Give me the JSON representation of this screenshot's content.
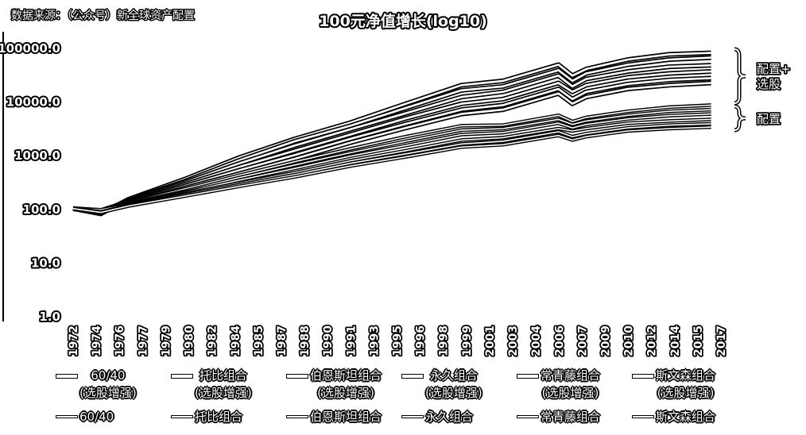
{
  "source_note": "数据来源：（公众号）新全球资产配置",
  "chart_data": {
    "type": "line",
    "title": "100元净值增长(log10)",
    "xlabel": "",
    "ylabel": "",
    "yscale": "log",
    "ylim": [
      1,
      100000
    ],
    "yticks": [
      "1.0",
      "10.0",
      "100.0",
      "1000.0",
      "10000.0",
      "100000.0"
    ],
    "x_ticks": [
      "1972",
      "1974",
      "1976",
      "1977",
      "1979",
      "1980",
      "1982",
      "1984",
      "1985",
      "1987",
      "1988",
      "1990",
      "1991",
      "1993",
      "1995",
      "1996",
      "1998",
      "1999",
      "2001",
      "2003",
      "2004",
      "2006",
      "2007",
      "2009",
      "2010",
      "2012",
      "2014",
      "2015",
      "2017"
    ],
    "x_range": [
      1972,
      2019
    ],
    "grid": false,
    "legend_position": "bottom",
    "series": [
      {
        "name": "60/40\n(选股增强)",
        "group": "enhanced",
        "values_by_year": [
          [
            1972,
            100
          ],
          [
            1974,
            80
          ],
          [
            1976,
            150
          ],
          [
            1980,
            350
          ],
          [
            1984,
            900
          ],
          [
            1988,
            2000
          ],
          [
            1992,
            4000
          ],
          [
            1996,
            9000
          ],
          [
            2000,
            20000
          ],
          [
            2003,
            24000
          ],
          [
            2007,
            48000
          ],
          [
            2008,
            30000
          ],
          [
            2009,
            40000
          ],
          [
            2012,
            60000
          ],
          [
            2015,
            75000
          ],
          [
            2018,
            80000
          ]
        ]
      },
      {
        "name": "托比组合\n(选股增强)",
        "group": "enhanced",
        "values_by_year": [
          [
            1972,
            100
          ],
          [
            1974,
            85
          ],
          [
            1976,
            145
          ],
          [
            1980,
            320
          ],
          [
            1984,
            800
          ],
          [
            1988,
            1800
          ],
          [
            1992,
            3500
          ],
          [
            1996,
            7500
          ],
          [
            2000,
            16000
          ],
          [
            2003,
            19000
          ],
          [
            2007,
            38000
          ],
          [
            2008,
            24000
          ],
          [
            2009,
            33000
          ],
          [
            2012,
            48000
          ],
          [
            2015,
            60000
          ],
          [
            2018,
            65000
          ]
        ]
      },
      {
        "name": "伯恩斯坦组合\n(选股增强)",
        "group": "enhanced",
        "values_by_year": [
          [
            1972,
            100
          ],
          [
            1974,
            88
          ],
          [
            1976,
            140
          ],
          [
            1980,
            300
          ],
          [
            1984,
            700
          ],
          [
            1988,
            1500
          ],
          [
            1992,
            3000
          ],
          [
            1996,
            6000
          ],
          [
            2000,
            12000
          ],
          [
            2003,
            15000
          ],
          [
            2007,
            30000
          ],
          [
            2008,
            19000
          ],
          [
            2009,
            26000
          ],
          [
            2012,
            36000
          ],
          [
            2015,
            44000
          ],
          [
            2018,
            47000
          ]
        ]
      },
      {
        "name": "永久组合\n(选股增强)",
        "group": "enhanced",
        "values_by_year": [
          [
            1972,
            100
          ],
          [
            1974,
            92
          ],
          [
            1976,
            135
          ],
          [
            1980,
            280
          ],
          [
            1984,
            600
          ],
          [
            1988,
            1200
          ],
          [
            1992,
            2400
          ],
          [
            1996,
            4800
          ],
          [
            2000,
            9000
          ],
          [
            2003,
            11000
          ],
          [
            2007,
            22000
          ],
          [
            2008,
            15000
          ],
          [
            2009,
            20000
          ],
          [
            2012,
            28000
          ],
          [
            2015,
            33000
          ],
          [
            2018,
            36000
          ]
        ]
      },
      {
        "name": "常青藤组合\n(选股增强)",
        "group": "enhanced",
        "values_by_year": [
          [
            1972,
            100
          ],
          [
            1974,
            86
          ],
          [
            1976,
            130
          ],
          [
            1980,
            260
          ],
          [
            1984,
            520
          ],
          [
            1988,
            1000
          ],
          [
            1992,
            2000
          ],
          [
            1996,
            3800
          ],
          [
            2000,
            7000
          ],
          [
            2003,
            8500
          ],
          [
            2007,
            17000
          ],
          [
            2008,
            11000
          ],
          [
            2009,
            15000
          ],
          [
            2012,
            21000
          ],
          [
            2015,
            25000
          ],
          [
            2018,
            27000
          ]
        ]
      },
      {
        "name": "斯文森组合\n(选股增强)",
        "group": "enhanced",
        "values_by_year": [
          [
            1972,
            100
          ],
          [
            1974,
            84
          ],
          [
            1976,
            125
          ],
          [
            1980,
            240
          ],
          [
            1984,
            450
          ],
          [
            1988,
            850
          ],
          [
            1992,
            1700
          ],
          [
            1996,
            3200
          ],
          [
            2000,
            5800
          ],
          [
            2003,
            7000
          ],
          [
            2007,
            14000
          ],
          [
            2008,
            9000
          ],
          [
            2009,
            12000
          ],
          [
            2012,
            17000
          ],
          [
            2015,
            20000
          ],
          [
            2018,
            22000
          ]
        ]
      },
      {
        "name": "60/40",
        "group": "allocation",
        "values_by_year": [
          [
            1972,
            100
          ],
          [
            1974,
            82
          ],
          [
            1976,
            130
          ],
          [
            1980,
            230
          ],
          [
            1984,
            420
          ],
          [
            1988,
            750
          ],
          [
            1992,
            1300
          ],
          [
            1996,
            2200
          ],
          [
            2000,
            3500
          ],
          [
            2003,
            3600
          ],
          [
            2007,
            5500
          ],
          [
            2008,
            4200
          ],
          [
            2009,
            5000
          ],
          [
            2012,
            6500
          ],
          [
            2015,
            7800
          ],
          [
            2018,
            8500
          ]
        ]
      },
      {
        "name": "托比组合",
        "group": "allocation",
        "values_by_year": [
          [
            1972,
            100
          ],
          [
            1974,
            88
          ],
          [
            1976,
            125
          ],
          [
            1980,
            210
          ],
          [
            1984,
            380
          ],
          [
            1988,
            650
          ],
          [
            1992,
            1100
          ],
          [
            1996,
            1800
          ],
          [
            2000,
            2900
          ],
          [
            2003,
            3100
          ],
          [
            2007,
            4600
          ],
          [
            2008,
            3700
          ],
          [
            2009,
            4300
          ],
          [
            2012,
            5500
          ],
          [
            2015,
            6500
          ],
          [
            2018,
            7000
          ]
        ]
      },
      {
        "name": "伯恩斯坦组合",
        "group": "allocation",
        "values_by_year": [
          [
            1972,
            100
          ],
          [
            1974,
            90
          ],
          [
            1976,
            120
          ],
          [
            1980,
            200
          ],
          [
            1984,
            340
          ],
          [
            1988,
            560
          ],
          [
            1992,
            950
          ],
          [
            1996,
            1500
          ],
          [
            2000,
            2400
          ],
          [
            2003,
            2600
          ],
          [
            2007,
            3900
          ],
          [
            2008,
            3200
          ],
          [
            2009,
            3700
          ],
          [
            2012,
            4700
          ],
          [
            2015,
            5400
          ],
          [
            2018,
            5800
          ]
        ]
      },
      {
        "name": "永久组合",
        "group": "allocation",
        "values_by_year": [
          [
            1972,
            100
          ],
          [
            1974,
            95
          ],
          [
            1976,
            118
          ],
          [
            1980,
            190
          ],
          [
            1984,
            300
          ],
          [
            1988,
            470
          ],
          [
            1992,
            780
          ],
          [
            1996,
            1200
          ],
          [
            2000,
            1900
          ],
          [
            2003,
            2100
          ],
          [
            2007,
            3100
          ],
          [
            2008,
            2800
          ],
          [
            2009,
            3100
          ],
          [
            2012,
            3900
          ],
          [
            2015,
            4300
          ],
          [
            2018,
            4600
          ]
        ]
      },
      {
        "name": "常青藤组合",
        "group": "allocation",
        "values_by_year": [
          [
            1972,
            100
          ],
          [
            1974,
            87
          ],
          [
            1976,
            115
          ],
          [
            1980,
            180
          ],
          [
            1984,
            280
          ],
          [
            1988,
            430
          ],
          [
            1992,
            700
          ],
          [
            1996,
            1050
          ],
          [
            2000,
            1600
          ],
          [
            2003,
            1800
          ],
          [
            2007,
            2700
          ],
          [
            2008,
            2200
          ],
          [
            2009,
            2500
          ],
          [
            2012,
            3200
          ],
          [
            2015,
            3600
          ],
          [
            2018,
            3800
          ]
        ]
      },
      {
        "name": "斯文森组合",
        "group": "allocation",
        "values_by_year": [
          [
            1972,
            100
          ],
          [
            1974,
            85
          ],
          [
            1976,
            112
          ],
          [
            1980,
            170
          ],
          [
            1984,
            260
          ],
          [
            1988,
            390
          ],
          [
            1992,
            620
          ],
          [
            1996,
            920
          ],
          [
            2000,
            1400
          ],
          [
            2003,
            1550
          ],
          [
            2007,
            2300
          ],
          [
            2008,
            1900
          ],
          [
            2009,
            2200
          ],
          [
            2012,
            2800
          ],
          [
            2015,
            3100
          ],
          [
            2018,
            3300
          ]
        ]
      }
    ],
    "annotations": [
      {
        "text": "配置+\n选股",
        "refers_to": "enhanced"
      },
      {
        "text": "配置",
        "refers_to": "allocation"
      }
    ]
  },
  "colors": {
    "line": "#ffffff",
    "outline": "#000000",
    "background": "#ffffff"
  }
}
